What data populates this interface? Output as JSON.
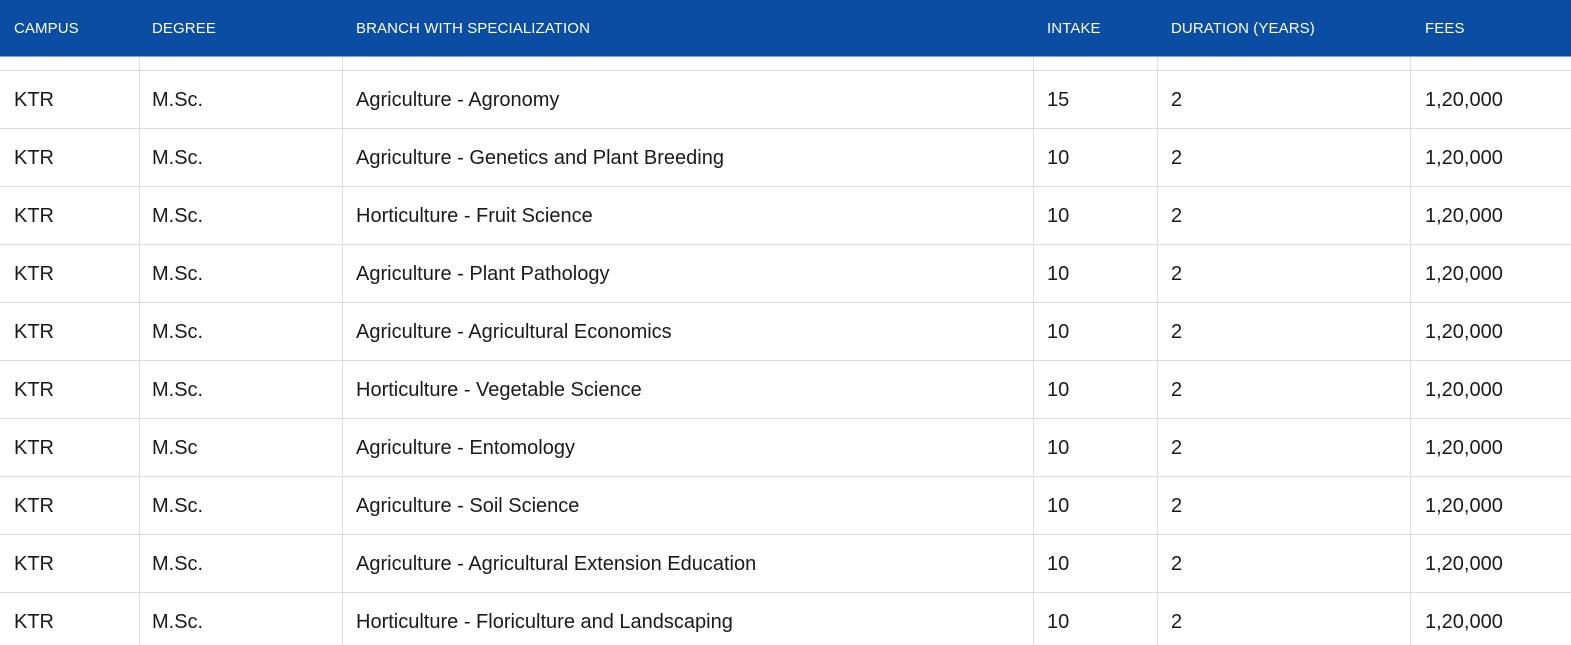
{
  "table": {
    "headers": [
      "CAMPUS",
      "DEGREE",
      "BRANCH WITH SPECIALIZATION",
      "INTAKE",
      "DURATION (YEARS)",
      "FEES"
    ],
    "rows": [
      [
        "KTR",
        "M.Sc.",
        "Agriculture - Agronomy",
        "15",
        "2",
        "1,20,000"
      ],
      [
        "KTR",
        "M.Sc.",
        "Agriculture - Genetics and Plant Breeding",
        "10",
        "2",
        "1,20,000"
      ],
      [
        "KTR",
        "M.Sc.",
        "Horticulture - Fruit Science",
        "10",
        "2",
        "1,20,000"
      ],
      [
        "KTR",
        "M.Sc.",
        "Agriculture - Plant Pathology",
        "10",
        "2",
        "1,20,000"
      ],
      [
        "KTR",
        "M.Sc.",
        "Agriculture - Agricultural Economics",
        "10",
        "2",
        "1,20,000"
      ],
      [
        "KTR",
        "M.Sc.",
        "Horticulture - Vegetable Science",
        "10",
        "2",
        "1,20,000"
      ],
      [
        "KTR",
        "M.Sc",
        "Agriculture - Entomology",
        "10",
        "2",
        "1,20,000"
      ],
      [
        "KTR",
        "M.Sc.",
        "Agriculture - Soil Science",
        "10",
        "2",
        "1,20,000"
      ],
      [
        "KTR",
        "M.Sc.",
        "Agriculture - Agricultural Extension Education",
        "10",
        "2",
        "1,20,000"
      ],
      [
        "KTR",
        "M.Sc.",
        "Horticulture - Floriculture and Landscaping",
        "10",
        "2",
        "1,20,000"
      ]
    ]
  },
  "colors": {
    "header_bg": "#0a4da2",
    "header_text": "#ffffff",
    "grid_line": "#dcdcdc",
    "cell_text": "#1a1a1a"
  }
}
